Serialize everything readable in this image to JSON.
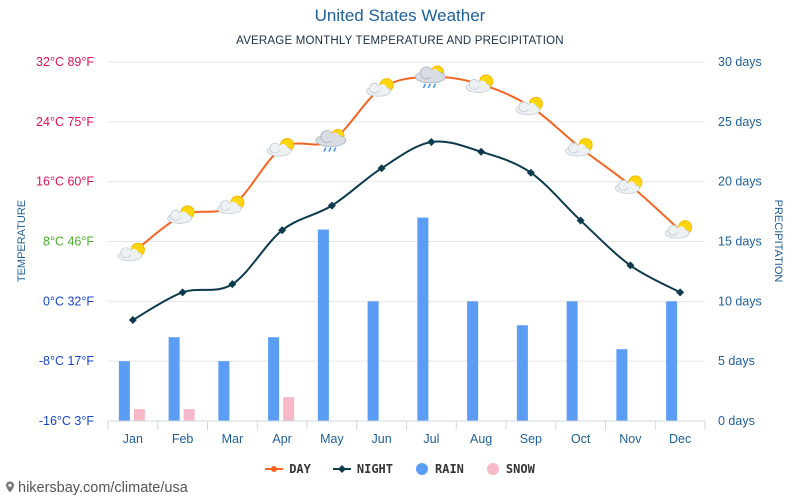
{
  "header": {
    "title": "United States Weather",
    "subtitle": "AVERAGE MONTHLY TEMPERATURE AND PRECIPITATION"
  },
  "chart_data": {
    "type": "line+bar",
    "title": "United States Weather",
    "subtitle": "AVERAGE MONTHLY TEMPERATURE AND PRECIPITATION",
    "categories": [
      "Jan",
      "Feb",
      "Mar",
      "Apr",
      "May",
      "Jun",
      "Jul",
      "Aug",
      "Sep",
      "Oct",
      "Nov",
      "Dec"
    ],
    "left_axis": {
      "label": "TEMPERATURE",
      "unit": "°C",
      "range": [
        -16,
        32
      ],
      "ticks": [
        {
          "value": 32,
          "label": "32°C 89°F",
          "color": "#e0115f"
        },
        {
          "value": 24,
          "label": "24°C 75°F",
          "color": "#e0115f"
        },
        {
          "value": 16,
          "label": "16°C 60°F",
          "color": "#e0115f"
        },
        {
          "value": 8,
          "label": "8°C 46°F",
          "color": "#4caf2a"
        },
        {
          "value": 0,
          "label": "0°C 32°F",
          "color": "#1a45c8"
        },
        {
          "value": -8,
          "label": "-8°C 17°F",
          "color": "#1a45c8"
        },
        {
          "value": -16,
          "label": "-16°C 3°F",
          "color": "#1a45c8"
        }
      ]
    },
    "right_axis": {
      "label": "PRECIPITATION",
      "unit": "days",
      "range": [
        0,
        30
      ],
      "ticks": [
        {
          "value": 30,
          "label": "30 days"
        },
        {
          "value": 25,
          "label": "25 days"
        },
        {
          "value": 20,
          "label": "20 days"
        },
        {
          "value": 15,
          "label": "15 days"
        },
        {
          "value": 10,
          "label": "10 days"
        },
        {
          "value": 5,
          "label": "5 days"
        },
        {
          "value": 0,
          "label": "0 days"
        }
      ]
    },
    "series": [
      {
        "name": "DAY",
        "kind": "line",
        "axis": "left",
        "color": "#f26522",
        "values": [
          6.5,
          11.5,
          12.8,
          20.5,
          21.5,
          28.5,
          30.0,
          29.0,
          26.0,
          20.5,
          15.5,
          9.5
        ]
      },
      {
        "name": "NIGHT",
        "kind": "line",
        "axis": "left",
        "color": "#0e3a4d",
        "values": [
          -2.5,
          1.2,
          2.3,
          9.5,
          12.8,
          17.8,
          21.3,
          20.0,
          17.2,
          10.8,
          4.8,
          1.2
        ]
      },
      {
        "name": "RAIN",
        "kind": "bar",
        "axis": "right",
        "color": "#5b9cf5",
        "values": [
          5,
          7,
          5,
          7,
          16,
          10,
          17,
          10,
          8,
          10,
          6,
          10
        ]
      },
      {
        "name": "SNOW",
        "kind": "bar",
        "axis": "right",
        "color": "#f7b8c8",
        "values": [
          1,
          1,
          0,
          2,
          0,
          0,
          0,
          0,
          0,
          0,
          0,
          0
        ]
      }
    ],
    "day_icons": [
      "sun-cloud",
      "sun-cloud",
      "sun-cloud",
      "sun-cloud",
      "rain-cloud",
      "sun-cloud",
      "rain-cloud",
      "sun-cloud",
      "sun-cloud",
      "sun-cloud",
      "sun-cloud",
      "sun-cloud"
    ],
    "legend": [
      {
        "name": "DAY",
        "color": "#f26522"
      },
      {
        "name": "NIGHT",
        "color": "#0e3a4d"
      },
      {
        "name": "RAIN",
        "color": "#5b9cf5"
      },
      {
        "name": "SNOW",
        "color": "#f7b8c8"
      }
    ],
    "grid": true
  },
  "footer": {
    "credit": "hikersbay.com/climate/usa"
  }
}
